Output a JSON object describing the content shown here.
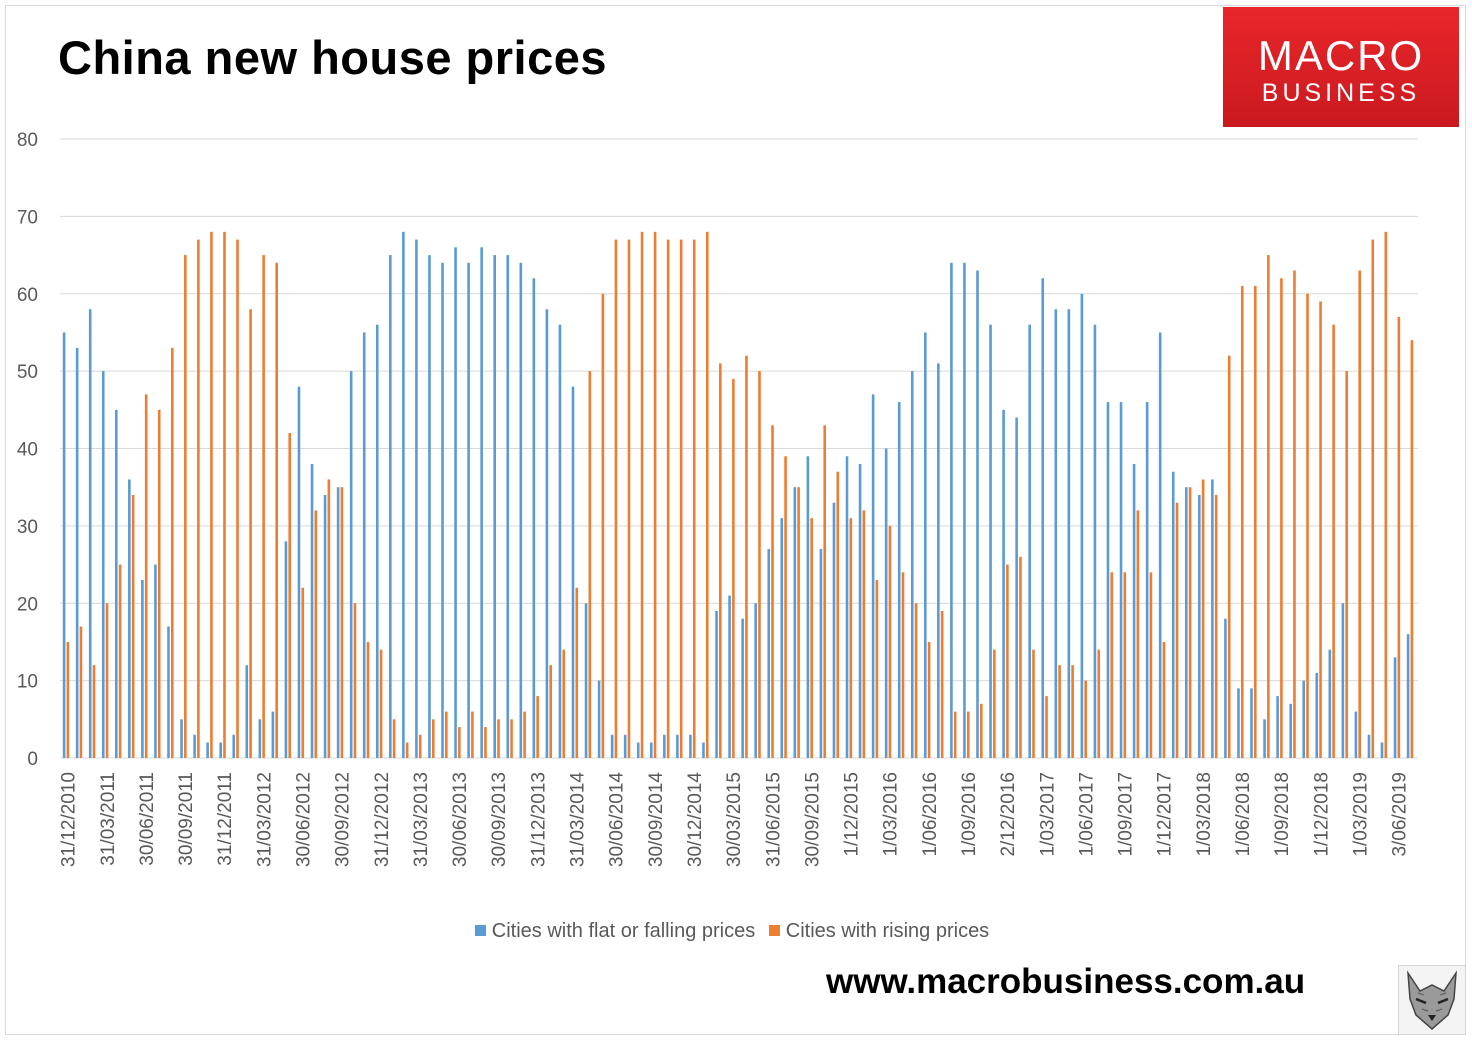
{
  "title": "China new house prices",
  "logo": {
    "line1": "MACRO",
    "line2": "BUSINESS",
    "color": "#e32227"
  },
  "url": "www.macrobusiness.com.au",
  "colors": {
    "falling": "#5b9bd5",
    "rising": "#ed7d31",
    "grid": "#d9d9d9",
    "axis_text": "#595959"
  },
  "legend": {
    "falling": "Cities with flat or falling prices",
    "rising": "Cities with rising prices"
  },
  "chart_data": {
    "type": "bar",
    "title": "China new house prices",
    "ylim": [
      0,
      80
    ],
    "yticks": [
      0,
      10,
      20,
      30,
      40,
      50,
      60,
      70,
      80
    ],
    "grid": true,
    "legend_position": "bottom",
    "x_tick_labels": [
      "31/12/2010",
      "31/03/2011",
      "30/06/2011",
      "30/09/2011",
      "31/12/2011",
      "31/03/2012",
      "30/06/2012",
      "30/09/2012",
      "31/12/2012",
      "31/03/2013",
      "30/06/2013",
      "30/09/2013",
      "31/12/2013",
      "31/03/2014",
      "30/06/2014",
      "30/09/2014",
      "30/12/2014",
      "30/03/2015",
      "31/06/2015",
      "30/09/2015",
      "1/12/2015",
      "1/03/2016",
      "1/06/2016",
      "1/09/2016",
      "2/12/2016",
      "1/03/2017",
      "1/06/2017",
      "1/09/2017",
      "1/12/2017",
      "1/03/2018",
      "1/06/2018",
      "1/09/2018",
      "1/12/2018",
      "1/03/2019",
      "3/06/2019"
    ],
    "series": [
      {
        "name": "Cities with flat or falling prices",
        "values": [
          55,
          53,
          58,
          50,
          45,
          36,
          23,
          25,
          17,
          5,
          3,
          2,
          2,
          3,
          12,
          5,
          6,
          28,
          48,
          38,
          34,
          35,
          50,
          55,
          56,
          65,
          68,
          67,
          65,
          64,
          66,
          64,
          66,
          65,
          65,
          64,
          62,
          58,
          56,
          48,
          20,
          10,
          3,
          3,
          2,
          2,
          3,
          3,
          3,
          2,
          19,
          21,
          18,
          20,
          27,
          31,
          35,
          39,
          27,
          33,
          39,
          38,
          47,
          40,
          46,
          50,
          55,
          51,
          64,
          64,
          63,
          56,
          45,
          44,
          56,
          62,
          58,
          58,
          60,
          56,
          46,
          46,
          38,
          46,
          55,
          37,
          35,
          34,
          36,
          18,
          9,
          9,
          5,
          8,
          7,
          10,
          11,
          14,
          20,
          6,
          3,
          2,
          13,
          16
        ]
      },
      {
        "name": "Cities with rising prices",
        "values": [
          15,
          17,
          12,
          20,
          25,
          34,
          47,
          45,
          53,
          65,
          67,
          68,
          68,
          67,
          58,
          65,
          64,
          42,
          22,
          32,
          36,
          35,
          20,
          15,
          14,
          5,
          2,
          3,
          5,
          6,
          4,
          6,
          4,
          5,
          5,
          6,
          8,
          12,
          14,
          22,
          50,
          60,
          67,
          67,
          68,
          68,
          67,
          67,
          67,
          68,
          51,
          49,
          52,
          50,
          43,
          39,
          35,
          31,
          43,
          37,
          31,
          32,
          23,
          30,
          24,
          20,
          15,
          19,
          6,
          6,
          7,
          14,
          25,
          26,
          14,
          8,
          12,
          12,
          10,
          14,
          24,
          24,
          32,
          24,
          15,
          33,
          35,
          36,
          34,
          52,
          61,
          61,
          65,
          62,
          63,
          60,
          59,
          56,
          50,
          63,
          67,
          68,
          57,
          54
        ]
      }
    ]
  }
}
